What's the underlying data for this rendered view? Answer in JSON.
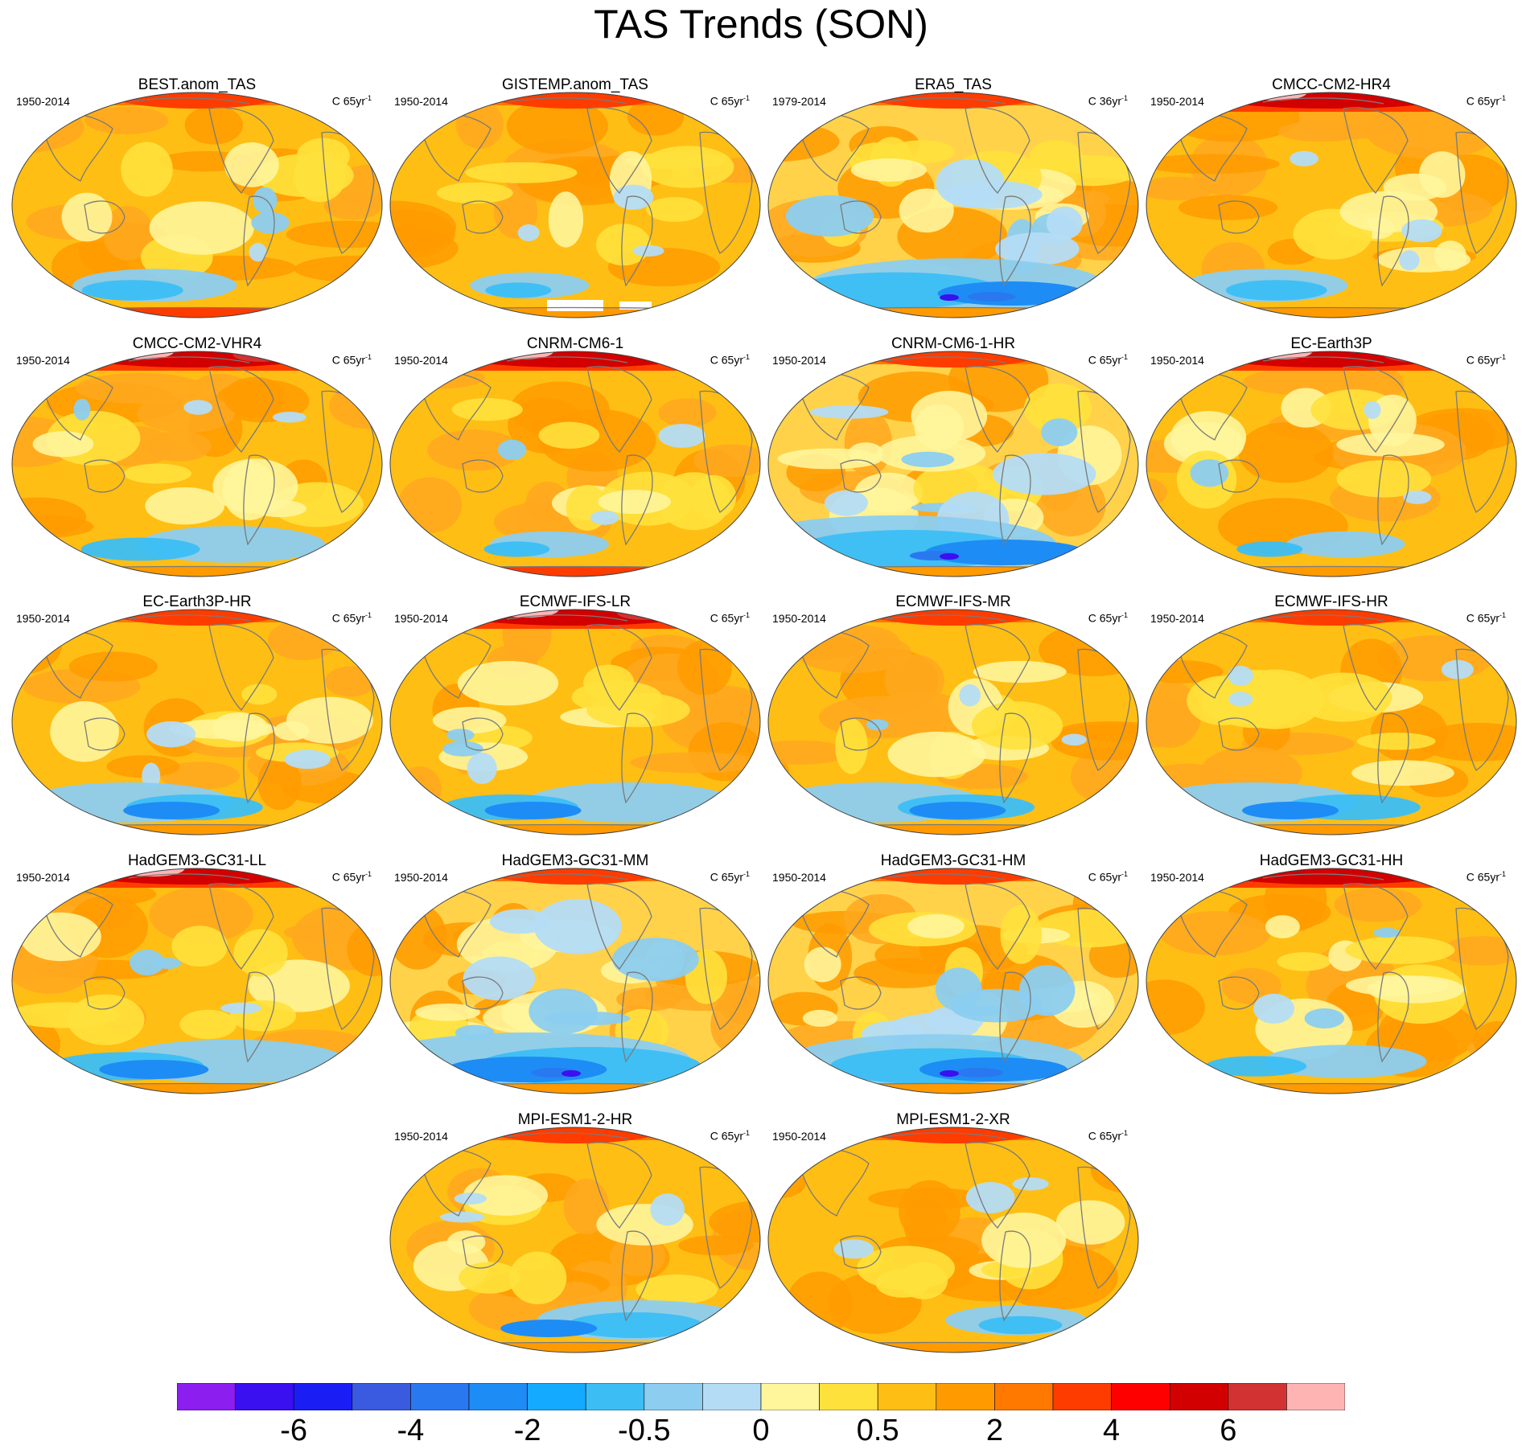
{
  "title": "TAS Trends (SON)",
  "panels": [
    {
      "title": "BEST.anom_TAS",
      "period": "1950-2014",
      "units": "C 65yr",
      "units_exp": "-1",
      "style": "warm-mod",
      "cool_south": 0.3,
      "missing": "none"
    },
    {
      "title": "GISTEMP.anom_TAS",
      "period": "1950-2014",
      "units": "C 65yr",
      "units_exp": "-1",
      "style": "warm-mod",
      "cool_south": 0.1,
      "missing": "antarctica"
    },
    {
      "title": "ERA5_TAS",
      "period": "1979-2014",
      "units": "C 36yr",
      "units_exp": "-1",
      "style": "mixed",
      "cool_south": 0.9,
      "missing": "none"
    },
    {
      "title": "CMCC-CM2-HR4",
      "period": "1950-2014",
      "units": "C 65yr",
      "units_exp": "-1",
      "style": "warm-strong",
      "cool_south": 0.3,
      "missing": "none"
    },
    {
      "title": "CMCC-CM2-VHR4",
      "period": "1950-2014",
      "units": "C 65yr",
      "units_exp": "-1",
      "style": "warm-strong",
      "cool_south": 0.4,
      "missing": "none"
    },
    {
      "title": "CNRM-CM6-1",
      "period": "1950-2014",
      "units": "C 65yr",
      "units_exp": "-1",
      "style": "warm-strong",
      "cool_south": 0.1,
      "missing": "none"
    },
    {
      "title": "CNRM-CM6-1-HR",
      "period": "1950-2014",
      "units": "C 65yr",
      "units_exp": "-1",
      "style": "mixed",
      "cool_south": 1.0,
      "missing": "none"
    },
    {
      "title": "EC-Earth3P",
      "period": "1950-2014",
      "units": "C 65yr",
      "units_exp": "-1",
      "style": "warm-strong",
      "cool_south": 0.1,
      "missing": "none"
    },
    {
      "title": "EC-Earth3P-HR",
      "period": "1950-2014",
      "units": "C 65yr",
      "units_exp": "-1",
      "style": "warm-mod",
      "cool_south": 0.5,
      "missing": "none"
    },
    {
      "title": "ECMWF-IFS-LR",
      "period": "1950-2014",
      "units": "C 65yr",
      "units_exp": "-1",
      "style": "warm-strong",
      "cool_south": 0.5,
      "missing": "none"
    },
    {
      "title": "ECMWF-IFS-MR",
      "period": "1950-2014",
      "units": "C 65yr",
      "units_exp": "-1",
      "style": "warm-mod",
      "cool_south": 0.5,
      "missing": "none"
    },
    {
      "title": "ECMWF-IFS-HR",
      "period": "1950-2014",
      "units": "C 65yr",
      "units_exp": "-1",
      "style": "warm-mod",
      "cool_south": 0.5,
      "missing": "none"
    },
    {
      "title": "HadGEM3-GC31-LL",
      "period": "1950-2014",
      "units": "C 65yr",
      "units_exp": "-1",
      "style": "warm-strong",
      "cool_south": 0.6,
      "missing": "none"
    },
    {
      "title": "HadGEM3-GC31-MM",
      "period": "1950-2014",
      "units": "C 65yr",
      "units_exp": "-1",
      "style": "mixed",
      "cool_south": 1.0,
      "missing": "none"
    },
    {
      "title": "HadGEM3-GC31-HM",
      "period": "1950-2014",
      "units": "C 65yr",
      "units_exp": "-1",
      "style": "mixed",
      "cool_south": 0.9,
      "missing": "none"
    },
    {
      "title": "HadGEM3-GC31-HH",
      "period": "1950-2014",
      "units": "C 65yr",
      "units_exp": "-1",
      "style": "warm-strong",
      "cool_south": 0.3,
      "missing": "none"
    },
    {
      "title": "MPI-ESM1-2-HR",
      "period": "1950-2014",
      "units": "C 65yr",
      "units_exp": "-1",
      "style": "warm-mod",
      "cool_south": 0.5,
      "missing": "none"
    },
    {
      "title": "MPI-ESM1-2-XR",
      "period": "1950-2014",
      "units": "C 65yr",
      "units_exp": "-1",
      "style": "warm-mod",
      "cool_south": 0.2,
      "missing": "none"
    }
  ],
  "colorbar": {
    "colors": [
      "#8c1ef0",
      "#3a0ff0",
      "#1a1ef5",
      "#3a5ae0",
      "#2a78f0",
      "#1e8cf5",
      "#14aaff",
      "#3cbef5",
      "#8ccdf0",
      "#b4dcf5",
      "#fff59b",
      "#ffe13c",
      "#ffbe14",
      "#ff9b00",
      "#ff7800",
      "#ff3c00",
      "#ff0000",
      "#d20000",
      "#d23232",
      "#ffb4b4"
    ],
    "labels": [
      "-6",
      "-4",
      "-2",
      "-0.5",
      "0",
      "0.5",
      "2",
      "4",
      "6"
    ],
    "label_boundary_index": [
      2,
      4,
      6,
      8,
      10,
      12,
      14,
      16,
      18
    ]
  }
}
